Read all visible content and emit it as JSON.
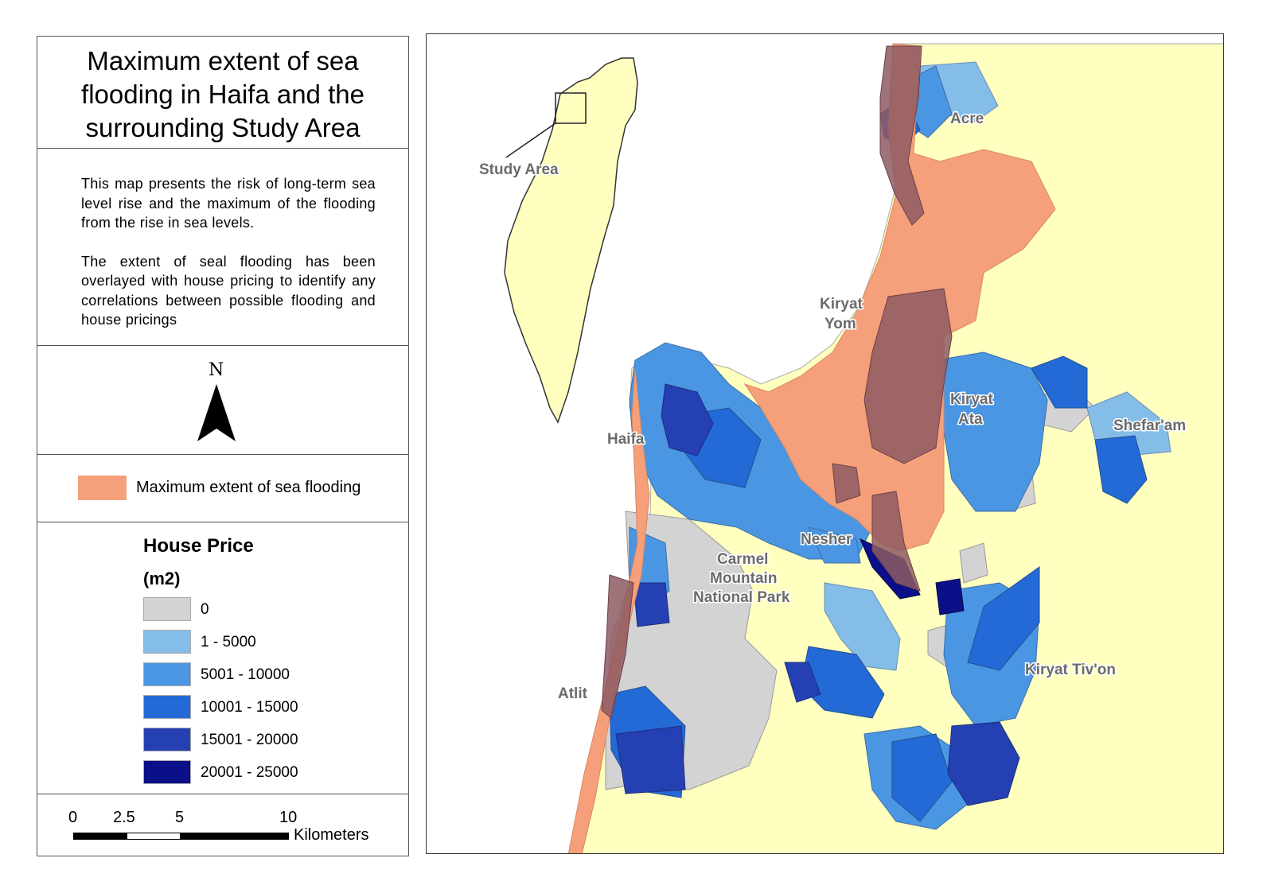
{
  "title": "Maximum extent of sea flooding in Haifa and the surrounding Study Area",
  "description": {
    "paragraph1": "This map presents the risk of long-term sea level rise and the maximum of the flooding from the rise in sea levels.",
    "paragraph2": "The extent of seal flooding has been overlayed with house pricing to identify any correlations between possible flooding and house pricings"
  },
  "north_label": "N",
  "flood_legend": {
    "label": "Maximum extent of sea flooding",
    "color": "#f5a07a"
  },
  "price_legend": {
    "title": "House Price",
    "unit": "(m2)",
    "classes": [
      {
        "label": "0",
        "color": "#d3d3d3"
      },
      {
        "label": "1 - 5000",
        "color": "#85bde9"
      },
      {
        "label": "5001 - 10000",
        "color": "#4a96e3"
      },
      {
        "label": "10001 - 15000",
        "color": "#236ad6"
      },
      {
        "label": "15001 - 20000",
        "color": "#2440b2"
      },
      {
        "label": "20001 - 25000",
        "color": "#0b0f88"
      }
    ]
  },
  "scale_bar": {
    "ticks": [
      "0",
      "2.5",
      "5",
      "10"
    ],
    "unit": "Kilometers"
  },
  "map": {
    "inset_label": "Study Area",
    "places": {
      "acre": "Acre",
      "kiryat_yom_1": "Kiryat",
      "kiryat_yom_2": "Yom",
      "kiryat_ata_1": "Kiryat",
      "kiryat_ata_2": "Ata",
      "shefaram": "Shefar'am",
      "haifa": "Haifa",
      "nesher": "Nesher",
      "carmel_1": "Carmel",
      "carmel_2": "Mountain",
      "carmel_3": "National Park",
      "atlit": "Atlit",
      "kiryat_tivon": "Kiryat Tiv'on"
    },
    "colors": {
      "sea": "#ffffff",
      "land": "#ffffc0",
      "flood_overlap": "#8e5a63"
    }
  }
}
